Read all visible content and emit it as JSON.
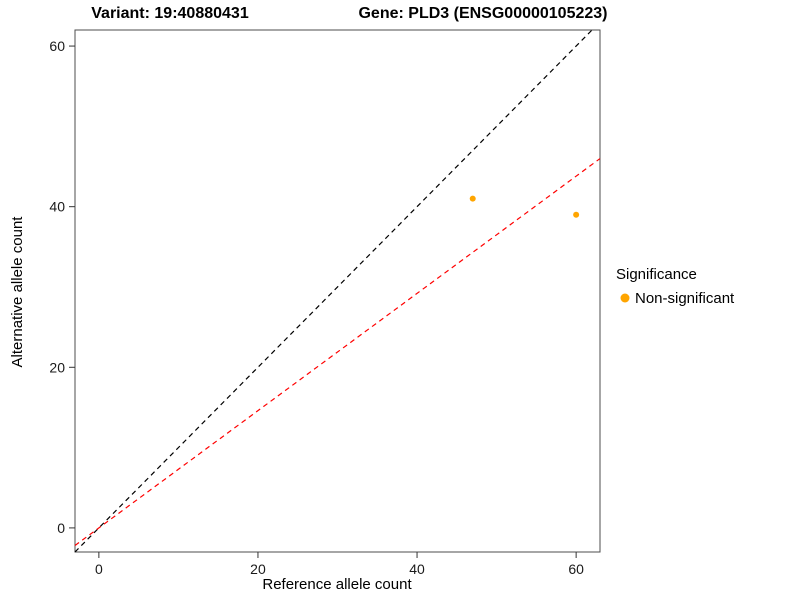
{
  "chart_data": {
    "type": "scatter",
    "title_left": "Variant: 19:40880431",
    "title_right": "Gene: PLD3 (ENSG00000105223)",
    "xlabel": "Reference allele count",
    "ylabel": "Alternative allele count",
    "xlim": [
      -3,
      63
    ],
    "ylim": [
      -3,
      62
    ],
    "x_ticks": [
      0,
      20,
      40,
      60
    ],
    "y_ticks": [
      0,
      20,
      40,
      60
    ],
    "grid": false,
    "points": [
      {
        "x": 47,
        "y": 41,
        "label": "Non-significant"
      },
      {
        "x": 60,
        "y": 39,
        "label": "Non-significant"
      }
    ],
    "point_color": "#FFA500",
    "point_radius": 3,
    "lines": [
      {
        "name": "identity-line",
        "slope": 1,
        "intercept": 0,
        "color": "#000000",
        "dash": "5 4"
      },
      {
        "name": "expected-ratio-line",
        "slope": 0.73,
        "intercept": 0,
        "color": "#FF0000",
        "dash": "5 4"
      }
    ],
    "legend": {
      "position": "right",
      "title": "Significance",
      "items": [
        {
          "label": "Non-significant",
          "color": "#FFA500"
        }
      ]
    }
  }
}
